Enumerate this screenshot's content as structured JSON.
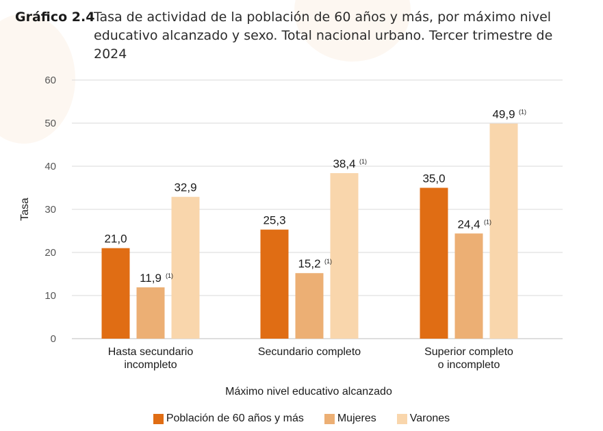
{
  "title": {
    "label": "Gráfico 2.4",
    "text": "Tasa de actividad de la población de 60 años y más, por máximo nivel educativo alcanzado y sexo. Total nacional urbano. Tercer trimestre de 2024"
  },
  "chart_data": {
    "type": "bar",
    "title": "Tasa de actividad de la población de 60 años y más, por máximo nivel educativo alcanzado y sexo. Total nacional urbano. Tercer trimestre de 2024",
    "xlabel": "Máximo nivel educativo alcanzado",
    "ylabel": "Tasa",
    "ylim": [
      0,
      60
    ],
    "yticks": [
      "0",
      "10",
      "20",
      "30",
      "40",
      "50",
      "60"
    ],
    "grid": true,
    "legend_position": "bottom",
    "categories": [
      [
        "Hasta secundario",
        "incompleto"
      ],
      [
        "Secundario completo"
      ],
      [
        "Superior completo",
        "o incompleto"
      ]
    ],
    "series": [
      {
        "name": "Población de 60 años y más",
        "color": "#e06d14",
        "values": [
          21.0,
          25.3,
          35.0
        ],
        "labels": [
          "21,0",
          "25,3",
          "35,0"
        ],
        "notes": [
          "",
          "",
          ""
        ]
      },
      {
        "name": "Mujeres",
        "color": "#ecaf74",
        "values": [
          11.9,
          15.2,
          24.4
        ],
        "labels": [
          "11,9",
          "15,2",
          "24,4"
        ],
        "notes": [
          "(1)",
          "(1)",
          "(1)"
        ]
      },
      {
        "name": "Varones",
        "color": "#f9d6ac",
        "values": [
          32.9,
          38.4,
          49.9
        ],
        "labels": [
          "32,9",
          "38,4",
          "49,9"
        ],
        "notes": [
          "",
          "(1)",
          "(1)"
        ]
      }
    ]
  }
}
